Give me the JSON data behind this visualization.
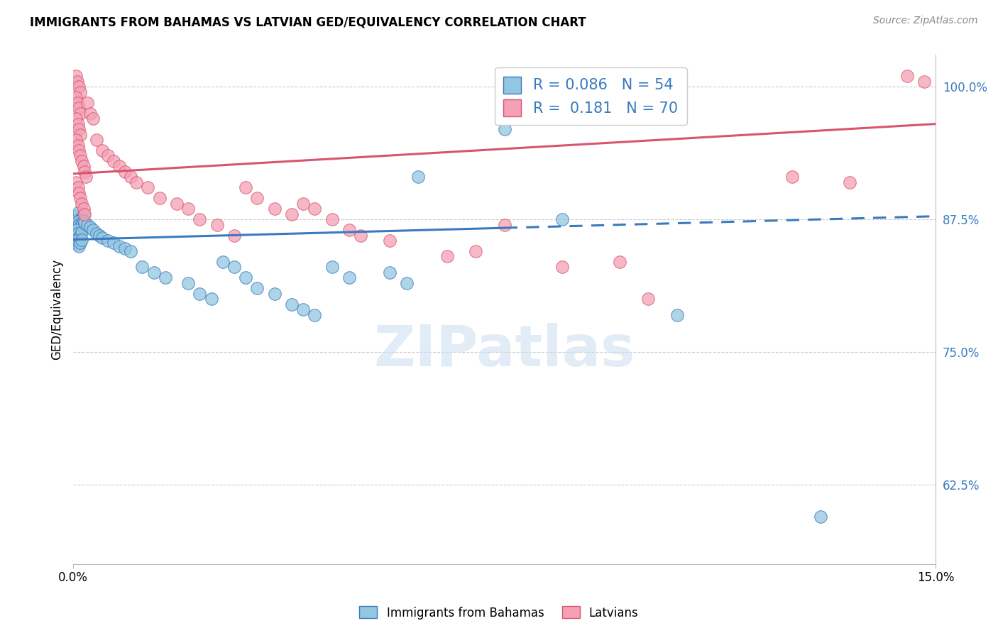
{
  "title": "IMMIGRANTS FROM BAHAMAS VS LATVIAN GED/EQUIVALENCY CORRELATION CHART",
  "source": "Source: ZipAtlas.com",
  "ylabel": "GED/Equivalency",
  "xlim": [
    0.0,
    15.0
  ],
  "ylim": [
    55.0,
    103.0
  ],
  "yticks": [
    62.5,
    75.0,
    87.5,
    100.0
  ],
  "ytick_labels": [
    "62.5%",
    "75.0%",
    "87.5%",
    "100.0%"
  ],
  "legend_blue_r": "0.086",
  "legend_blue_n": "54",
  "legend_pink_r": "0.181",
  "legend_pink_n": "70",
  "color_blue": "#93c6e0",
  "color_pink": "#f4a0b5",
  "line_blue": "#3a7abf",
  "line_pink": "#d9546e",
  "watermark": "ZIPatlas",
  "blue_line_x": [
    0.0,
    15.0
  ],
  "blue_line_y": [
    85.6,
    87.8
  ],
  "blue_solid_end_x": 7.5,
  "pink_line_x": [
    0.0,
    15.0
  ],
  "pink_line_y": [
    91.8,
    96.5
  ],
  "blue_points": [
    [
      0.05,
      87.8
    ],
    [
      0.1,
      88.2
    ],
    [
      0.12,
      87.5
    ],
    [
      0.15,
      87.6
    ],
    [
      0.18,
      88.0
    ],
    [
      0.08,
      87.3
    ],
    [
      0.1,
      87.0
    ],
    [
      0.12,
      86.8
    ],
    [
      0.15,
      87.1
    ],
    [
      0.18,
      87.4
    ],
    [
      0.05,
      86.5
    ],
    [
      0.08,
      86.2
    ],
    [
      0.1,
      85.8
    ],
    [
      0.12,
      86.0
    ],
    [
      0.15,
      86.3
    ],
    [
      0.05,
      85.5
    ],
    [
      0.08,
      85.2
    ],
    [
      0.1,
      85.0
    ],
    [
      0.12,
      85.3
    ],
    [
      0.15,
      85.6
    ],
    [
      0.2,
      87.2
    ],
    [
      0.25,
      87.0
    ],
    [
      0.3,
      86.8
    ],
    [
      0.35,
      86.5
    ],
    [
      0.4,
      86.2
    ],
    [
      0.45,
      86.0
    ],
    [
      0.5,
      85.8
    ],
    [
      0.6,
      85.5
    ],
    [
      0.7,
      85.3
    ],
    [
      0.8,
      85.0
    ],
    [
      0.9,
      84.8
    ],
    [
      1.0,
      84.5
    ],
    [
      1.2,
      83.0
    ],
    [
      1.4,
      82.5
    ],
    [
      1.6,
      82.0
    ],
    [
      2.0,
      81.5
    ],
    [
      2.2,
      80.5
    ],
    [
      2.4,
      80.0
    ],
    [
      2.6,
      83.5
    ],
    [
      2.8,
      83.0
    ],
    [
      3.0,
      82.0
    ],
    [
      3.2,
      81.0
    ],
    [
      3.5,
      80.5
    ],
    [
      3.8,
      79.5
    ],
    [
      4.0,
      79.0
    ],
    [
      4.2,
      78.5
    ],
    [
      4.5,
      83.0
    ],
    [
      4.8,
      82.0
    ],
    [
      5.5,
      82.5
    ],
    [
      5.8,
      81.5
    ],
    [
      6.0,
      91.5
    ],
    [
      7.5,
      96.0
    ],
    [
      8.5,
      87.5
    ],
    [
      10.5,
      78.5
    ],
    [
      13.0,
      59.5
    ]
  ],
  "pink_points": [
    [
      0.05,
      101.0
    ],
    [
      0.07,
      100.5
    ],
    [
      0.1,
      100.0
    ],
    [
      0.12,
      99.5
    ],
    [
      0.05,
      99.0
    ],
    [
      0.07,
      98.5
    ],
    [
      0.1,
      98.0
    ],
    [
      0.12,
      97.5
    ],
    [
      0.05,
      97.0
    ],
    [
      0.08,
      96.5
    ],
    [
      0.1,
      96.0
    ],
    [
      0.12,
      95.5
    ],
    [
      0.05,
      95.0
    ],
    [
      0.08,
      94.5
    ],
    [
      0.1,
      94.0
    ],
    [
      0.12,
      93.5
    ],
    [
      0.15,
      93.0
    ],
    [
      0.18,
      92.5
    ],
    [
      0.2,
      92.0
    ],
    [
      0.22,
      91.5
    ],
    [
      0.05,
      91.0
    ],
    [
      0.08,
      90.5
    ],
    [
      0.1,
      90.0
    ],
    [
      0.12,
      89.5
    ],
    [
      0.15,
      89.0
    ],
    [
      0.18,
      88.5
    ],
    [
      0.2,
      88.0
    ],
    [
      0.25,
      98.5
    ],
    [
      0.3,
      97.5
    ],
    [
      0.35,
      97.0
    ],
    [
      0.4,
      95.0
    ],
    [
      0.5,
      94.0
    ],
    [
      0.6,
      93.5
    ],
    [
      0.7,
      93.0
    ],
    [
      0.8,
      92.5
    ],
    [
      0.9,
      92.0
    ],
    [
      1.0,
      91.5
    ],
    [
      1.1,
      91.0
    ],
    [
      1.3,
      90.5
    ],
    [
      1.5,
      89.5
    ],
    [
      1.8,
      89.0
    ],
    [
      2.0,
      88.5
    ],
    [
      2.2,
      87.5
    ],
    [
      2.5,
      87.0
    ],
    [
      2.8,
      86.0
    ],
    [
      3.0,
      90.5
    ],
    [
      3.2,
      89.5
    ],
    [
      3.5,
      88.5
    ],
    [
      3.8,
      88.0
    ],
    [
      4.0,
      89.0
    ],
    [
      4.2,
      88.5
    ],
    [
      4.5,
      87.5
    ],
    [
      4.8,
      86.5
    ],
    [
      5.0,
      86.0
    ],
    [
      5.5,
      85.5
    ],
    [
      6.5,
      84.0
    ],
    [
      7.0,
      84.5
    ],
    [
      7.5,
      87.0
    ],
    [
      8.5,
      83.0
    ],
    [
      9.5,
      83.5
    ],
    [
      10.0,
      80.0
    ],
    [
      12.5,
      91.5
    ],
    [
      13.5,
      91.0
    ],
    [
      14.5,
      101.0
    ],
    [
      14.8,
      100.5
    ]
  ]
}
